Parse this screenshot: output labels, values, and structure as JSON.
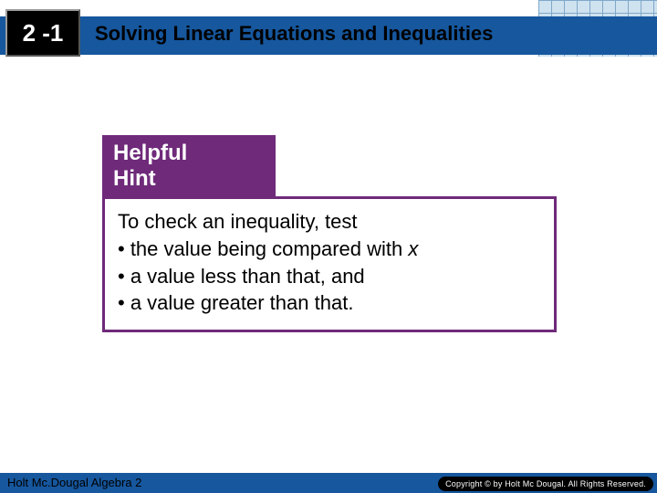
{
  "header": {
    "lesson_number": "2 -1",
    "title": "Solving Linear Equations and Inequalities",
    "bar_color": "#16579e",
    "chip_bg": "#000000",
    "chip_fg": "#ffffff",
    "grid_bg": "#cfe2ef",
    "grid_line": "#7fa8c9"
  },
  "hint": {
    "tab_label_line1": "Helpful",
    "tab_label_line2": "Hint",
    "tab_bg": "#6f2a7a",
    "tab_fg": "#ffffff",
    "border_color": "#6f2a7a",
    "body_bg": "#ffffff",
    "lead": "To check an inequality, test",
    "bullets": [
      "• the value being compared with ",
      "• a value less than that, and",
      "• a value greater than that."
    ],
    "var_symbol": "x",
    "body_fontsize": 22
  },
  "footer": {
    "left_text": "Holt Mc.Dougal Algebra 2",
    "copyright": "Copyright © by Holt Mc Dougal. All Rights Reserved.",
    "bar_color": "#16579e",
    "pill_bg": "#000000",
    "pill_fg": "#ffffff"
  }
}
